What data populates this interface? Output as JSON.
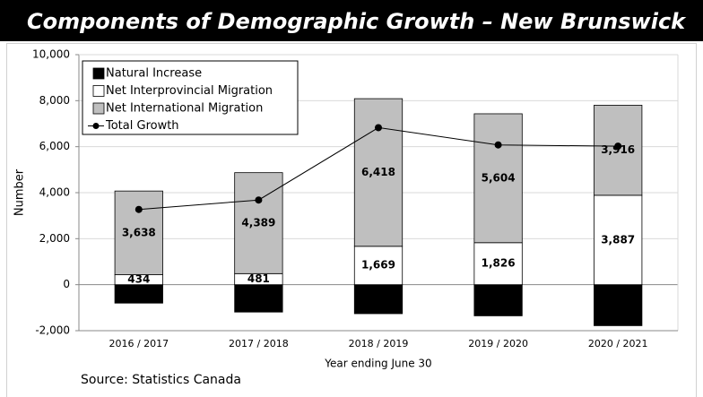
{
  "chart_data": {
    "type": "stacked-bar-line",
    "title": "Components of Demographic Growth – New Brunswick",
    "y_label": "Number",
    "x_label": "Year ending June 30",
    "source": "Source: Statistics Canada",
    "categories": [
      "2016 / 2017",
      "2017 / 2018",
      "2018 / 2019",
      "2019 / 2020",
      "2020 / 2021"
    ],
    "series": [
      {
        "name": "Natural Increase",
        "color": "#000000",
        "values": [
          -801,
          -1190,
          -1260,
          -1354,
          -1782
        ],
        "value_labels": [
          "-801",
          "-1,190",
          "-1,260",
          "-1,354",
          "-1,782"
        ]
      },
      {
        "name": "Net Interprovincial Migration",
        "color": "#ffffff",
        "values": [
          434,
          481,
          1669,
          1826,
          3887
        ],
        "value_labels": [
          "434",
          "481",
          "1,669",
          "1,826",
          "3,887"
        ]
      },
      {
        "name": "Net International Migration",
        "color": "#bfbfbf",
        "values": [
          3638,
          4389,
          6418,
          5604,
          3916
        ],
        "value_labels": [
          "3,638",
          "4,389",
          "6,418",
          "5,604",
          "3,916"
        ]
      },
      {
        "name": "Total Growth",
        "color": "#000000",
        "type": "line",
        "values": [
          3271,
          3680,
          6827,
          6076,
          6021
        ]
      }
    ],
    "ylim": [
      -2000,
      10000
    ],
    "yticks": [
      {
        "value": -2000,
        "label": "-2,000"
      },
      0,
      {
        "value": 2000,
        "label": "2,000"
      },
      {
        "value": 4000,
        "label": "4,000"
      },
      {
        "value": 6000,
        "label": "6,000"
      },
      {
        "value": 8000,
        "label": "8,000"
      },
      {
        "value": 10000,
        "label": "10,000"
      }
    ],
    "grid": true
  }
}
